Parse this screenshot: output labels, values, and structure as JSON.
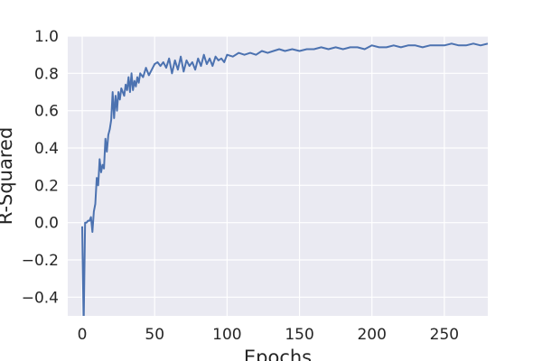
{
  "chart_data": {
    "type": "line",
    "xlabel": "Epochs",
    "ylabel": "R-Squared",
    "xlim": [
      -10,
      280
    ],
    "ylim": [
      -0.5,
      1.0
    ],
    "x_ticks": [
      0,
      50,
      100,
      150,
      200,
      250
    ],
    "x_tick_labels": [
      "0",
      "50",
      "100",
      "150",
      "200",
      "250"
    ],
    "y_ticks": [
      -0.4,
      -0.2,
      0.0,
      0.2,
      0.4,
      0.6,
      0.8,
      1.0
    ],
    "y_tick_labels": [
      "−0.4",
      "−0.2",
      "0.0",
      "0.2",
      "0.4",
      "0.6",
      "0.8",
      "1.0"
    ],
    "grid": true,
    "background_color": "#eaeaf2",
    "line_color": "#4c72b0",
    "series": [
      {
        "x": [
          0,
          1,
          2,
          3,
          4,
          5,
          6,
          7,
          8,
          9,
          10,
          11,
          12,
          13,
          14,
          15,
          16,
          17,
          18,
          19,
          20,
          21,
          22,
          23,
          24,
          25,
          26,
          27,
          28,
          29,
          30,
          31,
          32,
          33,
          34,
          35,
          36,
          37,
          38,
          39,
          40,
          42,
          44,
          46,
          48,
          50,
          52,
          54,
          56,
          58,
          60,
          62,
          64,
          66,
          68,
          70,
          72,
          74,
          76,
          78,
          80,
          82,
          84,
          86,
          88,
          90,
          92,
          94,
          96,
          98,
          100,
          104,
          108,
          112,
          116,
          120,
          124,
          128,
          132,
          136,
          140,
          145,
          150,
          155,
          160,
          165,
          170,
          175,
          180,
          185,
          190,
          195,
          200,
          205,
          210,
          215,
          220,
          225,
          230,
          235,
          240,
          245,
          250,
          255,
          260,
          265,
          270,
          275,
          280
        ],
        "y": [
          -0.02,
          -0.55,
          0.0,
          0.0,
          0.01,
          0.01,
          0.03,
          -0.05,
          0.06,
          0.1,
          0.24,
          0.2,
          0.34,
          0.27,
          0.31,
          0.29,
          0.45,
          0.38,
          0.47,
          0.5,
          0.55,
          0.7,
          0.56,
          0.68,
          0.6,
          0.7,
          0.66,
          0.72,
          0.7,
          0.68,
          0.74,
          0.71,
          0.78,
          0.7,
          0.8,
          0.71,
          0.76,
          0.73,
          0.78,
          0.75,
          0.8,
          0.78,
          0.83,
          0.79,
          0.82,
          0.85,
          0.86,
          0.84,
          0.86,
          0.83,
          0.88,
          0.8,
          0.87,
          0.82,
          0.89,
          0.81,
          0.87,
          0.84,
          0.86,
          0.82,
          0.88,
          0.84,
          0.9,
          0.85,
          0.88,
          0.84,
          0.89,
          0.87,
          0.88,
          0.86,
          0.9,
          0.89,
          0.91,
          0.9,
          0.91,
          0.9,
          0.92,
          0.91,
          0.92,
          0.93,
          0.92,
          0.93,
          0.92,
          0.93,
          0.93,
          0.94,
          0.93,
          0.94,
          0.93,
          0.94,
          0.94,
          0.93,
          0.95,
          0.94,
          0.94,
          0.95,
          0.94,
          0.95,
          0.95,
          0.94,
          0.95,
          0.95,
          0.95,
          0.96,
          0.95,
          0.95,
          0.96,
          0.95,
          0.96
        ]
      }
    ]
  }
}
